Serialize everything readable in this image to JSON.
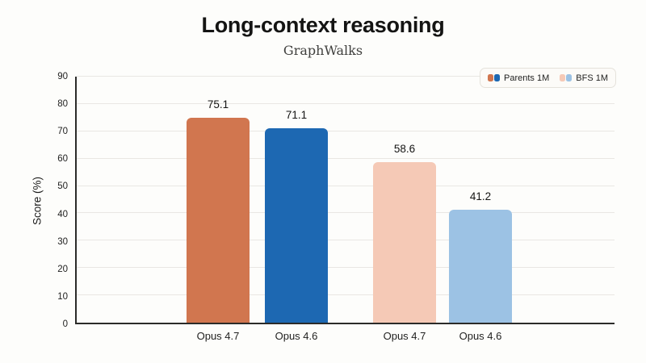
{
  "chart_data": {
    "type": "bar",
    "title": "Long-context reasoning",
    "subtitle": "GraphWalks",
    "ylabel": "Score (%)",
    "ylim": [
      0,
      90
    ],
    "yticks": [
      0,
      10,
      20,
      30,
      40,
      50,
      60,
      70,
      80,
      90
    ],
    "grid": "horizontal",
    "value_labels_shown": true,
    "categories": [
      "Opus 4.7",
      "Opus 4.6",
      "Opus 4.7",
      "Opus 4.6"
    ],
    "bars": [
      {
        "category": "Opus 4.7",
        "series": "Parents 1M",
        "value": 75.1,
        "label": "75.1",
        "color": "#d1764f"
      },
      {
        "category": "Opus 4.6",
        "series": "Parents 1M",
        "value": 71.1,
        "label": "71.1",
        "color": "#1d68b2"
      },
      {
        "category": "Opus 4.7",
        "series": "BFS 1M",
        "value": 58.6,
        "label": "58.6",
        "color": "#f5c9b6"
      },
      {
        "category": "Opus 4.6",
        "series": "BFS 1M",
        "value": 41.2,
        "label": "41.2",
        "color": "#9cc2e4"
      }
    ],
    "series": [
      {
        "name": "Parents 1M",
        "categories": [
          "Opus 4.7",
          "Opus 4.6"
        ],
        "values": [
          75.1,
          71.1
        ],
        "colors": [
          "#d1764f",
          "#1d68b2"
        ]
      },
      {
        "name": "BFS 1M",
        "categories": [
          "Opus 4.7",
          "Opus 4.6"
        ],
        "values": [
          58.6,
          41.2
        ],
        "colors": [
          "#f5c9b6",
          "#9cc2e4"
        ]
      }
    ],
    "legend": {
      "position": "top-right",
      "entries": [
        {
          "label": "Parents 1M",
          "swatches": [
            "#d1764f",
            "#1d68b2"
          ]
        },
        {
          "label": "BFS 1M",
          "swatches": [
            "#f5c9b6",
            "#9cc2e4"
          ]
        }
      ]
    },
    "colors": {
      "axis": "#2b2b29",
      "gridline": "#e9e7e3",
      "text": "#141413",
      "background": "#fdfdfb"
    }
  }
}
